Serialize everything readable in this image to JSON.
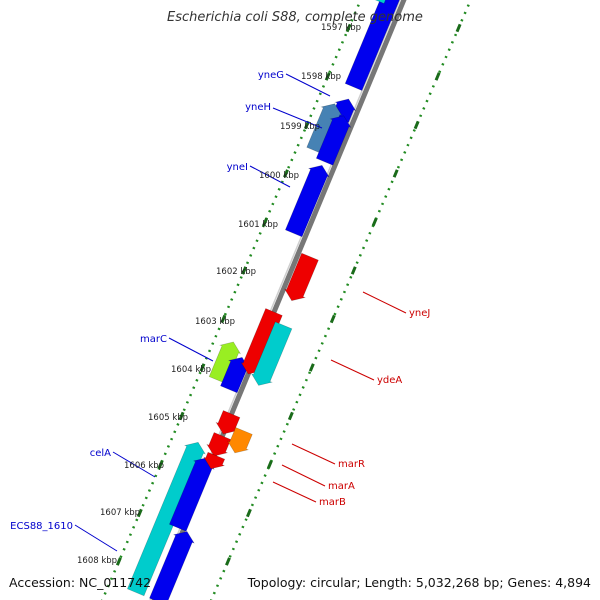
{
  "header": {
    "title": "Escherichia coli S88, complete genome"
  },
  "footer": {
    "accession": "Accession: NC_011742",
    "topology": "Topology: circular; Length: 5,032,268 bp; Genes: 4,894"
  },
  "ruler": {
    "top_partial_label": "1597 kbp",
    "labels": [
      "1598 kbp",
      "1599 kbp",
      "1600 kbp",
      "1601 kbp",
      "1602 kbp",
      "1603 kbp",
      "1604 kbp",
      "1605 kbp",
      "1606 kbp",
      "1607 kbp",
      "1608 kbp"
    ]
  },
  "gene_labels": {
    "left": [
      "yneG",
      "yneH",
      "yneI",
      "marC",
      "celA",
      "ECS88_1610"
    ],
    "right": [
      "yneJ",
      "ydeA",
      "marR",
      "marA",
      "marB"
    ]
  },
  "colors": {
    "left_label": "#0000cc",
    "right_label": "#cc0000",
    "blue": "#0000ee",
    "steel": "#4682b4",
    "cyan": "#00cccc",
    "red": "#ee0000",
    "orange": "#ff8800",
    "lime": "#99ee22",
    "backbone": "#777777",
    "dots": "#228b22"
  }
}
